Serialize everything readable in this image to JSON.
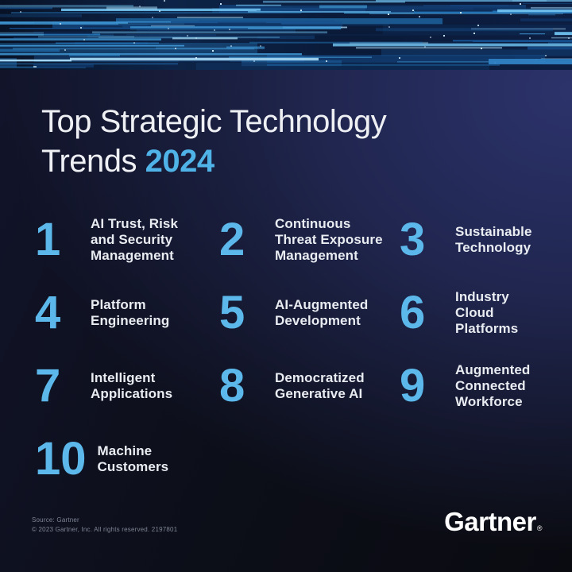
{
  "header": {
    "title_line1": "Top Strategic Technology",
    "title_line2_text": "Trends ",
    "title_year": "2024"
  },
  "trends": [
    {
      "number": "1",
      "label": "AI Trust, Risk\nand Security\nManagement"
    },
    {
      "number": "2",
      "label": "Continuous\nThreat Exposure\nManagement"
    },
    {
      "number": "3",
      "label": "Sustainable\nTechnology"
    },
    {
      "number": "4",
      "label": "Platform\nEngineering"
    },
    {
      "number": "5",
      "label": "AI-Augmented\nDevelopment"
    },
    {
      "number": "6",
      "label": "Industry\nCloud\nPlatforms"
    },
    {
      "number": "7",
      "label": "Intelligent\nApplications"
    },
    {
      "number": "8",
      "label": "Democratized\nGenerative AI"
    },
    {
      "number": "9",
      "label": "Augmented\nConnected\nWorkforce"
    },
    {
      "number": "10",
      "label": "Machine\nCustomers"
    }
  ],
  "footer": {
    "source_line1": "Source: Gartner",
    "source_line2": "© 2023 Gartner, Inc. All rights reserved. 2197801",
    "logo_text": "Gartner",
    "registered_mark": "®"
  },
  "colors": {
    "accent_blue": "#5cb8ea",
    "year_blue": "#4fb3e8",
    "background_bright_navy": "#2c336b",
    "background_dark": "#0a0b11",
    "text_white": "#eef0f4",
    "source_gray": "#7e8494"
  }
}
